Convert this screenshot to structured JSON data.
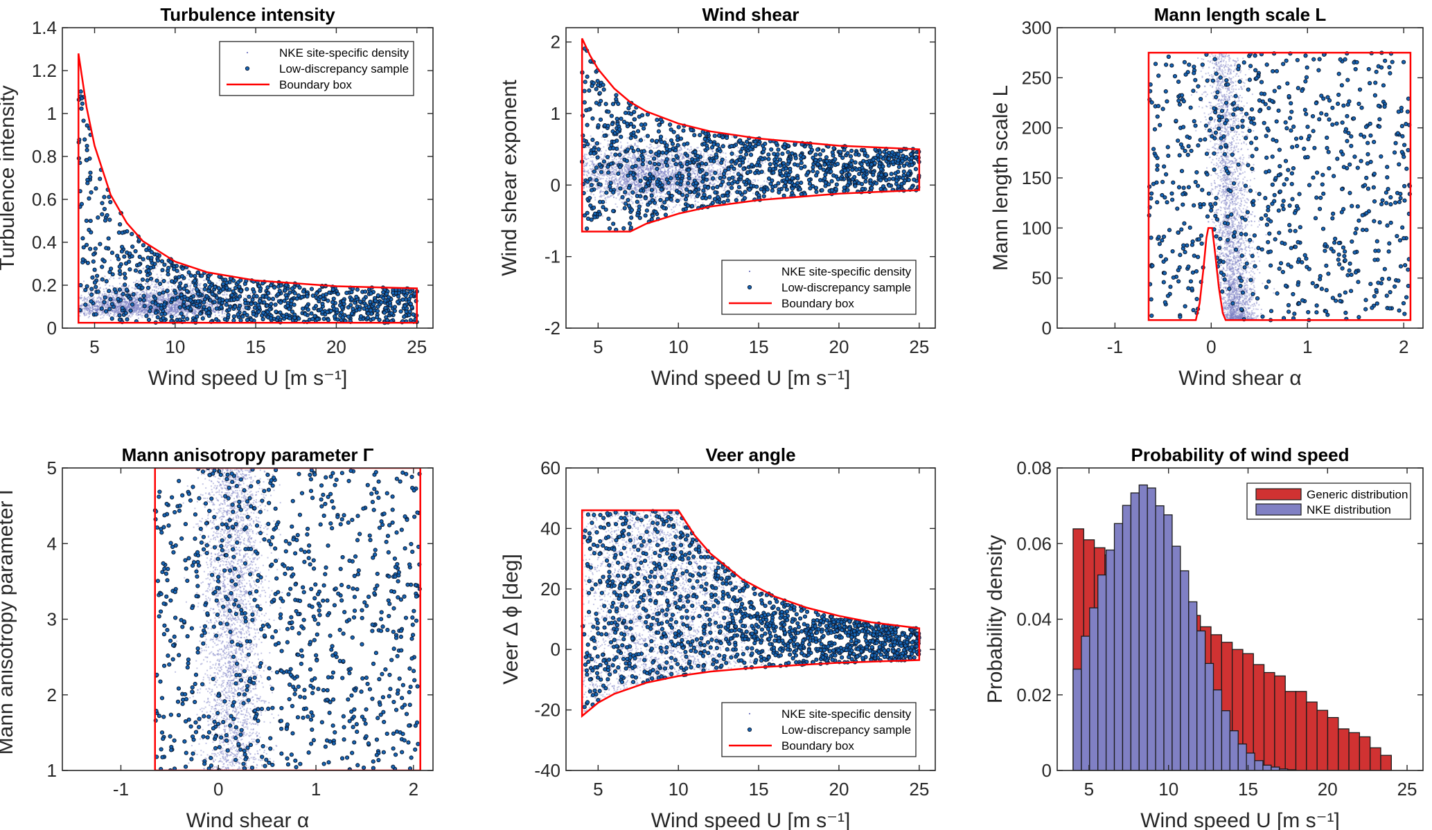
{
  "colors": {
    "boundary": "#ff0000",
    "density": "#7b7fc4",
    "sample_fill": "#1565b5",
    "sample_edge": "#0b1a33",
    "generic_bar": "#d03232",
    "nke_bar": "#8080c4"
  },
  "chart_data": [
    {
      "type": "scatter",
      "title": "Turbulence intensity",
      "xlabel": "Wind speed U [m s⁻¹]",
      "ylabel": "Turbulence intensity",
      "xlim": [
        3,
        26
      ],
      "ylim": [
        0,
        1.4
      ],
      "xticks": [
        5,
        10,
        15,
        20,
        25
      ],
      "yticks": [
        0,
        0.2,
        0.4,
        0.6,
        0.8,
        1,
        1.2,
        1.4
      ],
      "legend_position": "top-right",
      "legend": [
        "NKE site-specific density",
        "Low-discrepancy sample",
        "Boundary box"
      ],
      "boundary": [
        [
          4,
          0.025
        ],
        [
          4,
          1.28
        ],
        [
          4.5,
          1.03
        ],
        [
          5,
          0.85
        ],
        [
          6,
          0.62
        ],
        [
          7,
          0.49
        ],
        [
          8,
          0.405
        ],
        [
          10,
          0.31
        ],
        [
          12,
          0.26
        ],
        [
          15,
          0.222
        ],
        [
          20,
          0.195
        ],
        [
          25,
          0.185
        ],
        [
          25,
          0.025
        ]
      ]
    },
    {
      "type": "scatter",
      "title": "Wind shear",
      "xlabel": "Wind speed U [m s⁻¹]",
      "ylabel": "Wind shear exponent",
      "xlim": [
        3,
        26
      ],
      "ylim": [
        -2,
        2.2
      ],
      "xticks": [
        5,
        10,
        15,
        20,
        25
      ],
      "yticks": [
        -2,
        -1,
        0,
        1,
        2
      ],
      "legend_position": "bottom-right",
      "legend": [
        "NKE site-specific density",
        "Low-discrepancy sample",
        "Boundary box"
      ],
      "boundary": [
        [
          4,
          -0.65
        ],
        [
          4,
          2.05
        ],
        [
          4.5,
          1.81
        ],
        [
          5,
          1.62
        ],
        [
          6,
          1.35
        ],
        [
          7,
          1.16
        ],
        [
          8,
          1.03
        ],
        [
          10,
          0.86
        ],
        [
          12,
          0.75
        ],
        [
          15,
          0.65
        ],
        [
          20,
          0.55
        ],
        [
          25,
          0.5
        ],
        [
          25,
          -0.07
        ],
        [
          20,
          -0.12
        ],
        [
          15,
          -0.21
        ],
        [
          12,
          -0.3
        ],
        [
          10,
          -0.4
        ],
        [
          8,
          -0.54
        ],
        [
          7,
          -0.65
        ]
      ]
    },
    {
      "type": "scatter",
      "title": "Mann length scale L",
      "xlabel": "Wind shear α",
      "ylabel": "Mann length scale L",
      "xlim": [
        -1.6,
        2.2
      ],
      "ylim": [
        0,
        300
      ],
      "xticks": [
        -1,
        0,
        1,
        2
      ],
      "yticks": [
        0,
        50,
        100,
        150,
        200,
        250,
        300
      ],
      "boundary": [
        [
          -0.65,
          8
        ],
        [
          -0.16,
          8
        ],
        [
          -0.12,
          25
        ],
        [
          -0.08,
          60
        ],
        [
          -0.05,
          90
        ],
        [
          -0.03,
          100
        ],
        [
          0.01,
          100
        ],
        [
          0.04,
          75
        ],
        [
          0.08,
          40
        ],
        [
          0.12,
          15
        ],
        [
          0.15,
          8
        ],
        [
          2.07,
          8
        ],
        [
          2.07,
          275
        ],
        [
          -0.65,
          275
        ]
      ]
    },
    {
      "type": "scatter",
      "title": "Mann anisotropy parameter Γ",
      "xlabel": "Wind shear α",
      "ylabel": "Mann anisotropy parameter Γ",
      "xlim": [
        -1.6,
        2.2
      ],
      "ylim": [
        1,
        5
      ],
      "xticks": [
        -1,
        0,
        1,
        2
      ],
      "yticks": [
        1,
        2,
        3,
        4,
        5
      ],
      "boundary": [
        [
          -0.65,
          1
        ],
        [
          -0.65,
          5
        ],
        [
          2.07,
          5
        ],
        [
          2.07,
          1
        ]
      ]
    },
    {
      "type": "scatter",
      "title": "Veer angle",
      "xlabel": "Wind speed U [m s⁻¹]",
      "ylabel": "Veer Δ ϕ [deg]",
      "xlim": [
        3,
        26
      ],
      "ylim": [
        -40,
        60
      ],
      "xticks": [
        5,
        10,
        15,
        20,
        25
      ],
      "yticks": [
        -40,
        -20,
        0,
        20,
        40,
        60
      ],
      "legend_position": "bottom-right",
      "legend": [
        "NKE site-specific density",
        "Low-discrepancy sample",
        "Boundary box"
      ],
      "boundary": [
        [
          4,
          -22
        ],
        [
          4,
          46
        ],
        [
          10,
          46
        ],
        [
          11,
          37.8
        ],
        [
          12,
          31.7
        ],
        [
          14,
          23.1
        ],
        [
          16,
          17.5
        ],
        [
          18,
          13.8
        ],
        [
          20,
          11.1
        ],
        [
          22,
          9
        ],
        [
          25,
          7
        ],
        [
          25,
          -3.5
        ],
        [
          20,
          -4.4
        ],
        [
          15,
          -5.9
        ],
        [
          12,
          -7.3
        ],
        [
          10,
          -8.8
        ],
        [
          8,
          -11
        ],
        [
          6,
          -14.7
        ],
        [
          5,
          -17.6
        ]
      ]
    },
    {
      "type": "bar",
      "title": "Probability of wind speed",
      "xlabel": "Wind speed U [m s⁻¹]",
      "ylabel": "Probability density",
      "xlim": [
        3,
        26
      ],
      "ylim": [
        0,
        0.08
      ],
      "xticks": [
        5,
        10,
        15,
        20,
        25
      ],
      "yticks": [
        0,
        0.02,
        0.04,
        0.06,
        0.08
      ],
      "legend_position": "top-right",
      "series": [
        {
          "name": "Generic distribution",
          "bin_start": 4,
          "bin_width": 0.667,
          "values": [
            0.0639,
            0.061,
            0.0589,
            0.057,
            0.055,
            0.053,
            0.051,
            0.049,
            0.047,
            0.045,
            0.043,
            0.041,
            0.038,
            0.0359,
            0.0339,
            0.032,
            0.0309,
            0.028,
            0.0259,
            0.025,
            0.0209,
            0.0209,
            0.0181,
            0.0159,
            0.014,
            0.011,
            0.01,
            0.0089,
            0.006,
            0.004
          ]
        },
        {
          "name": "NKE distribution",
          "bin_start": 4,
          "bin_width": 0.519,
          "values": [
            0.0268,
            0.0355,
            0.043,
            0.0517,
            0.0583,
            0.0653,
            0.0701,
            0.0734,
            0.0755,
            0.0747,
            0.07,
            0.0676,
            0.0593,
            0.0528,
            0.0446,
            0.0369,
            0.0283,
            0.0213,
            0.0158,
            0.0105,
            0.007,
            0.0046,
            0.0026,
            0.0014,
            0.0009,
            0.0004,
            0.0002
          ]
        }
      ]
    }
  ]
}
